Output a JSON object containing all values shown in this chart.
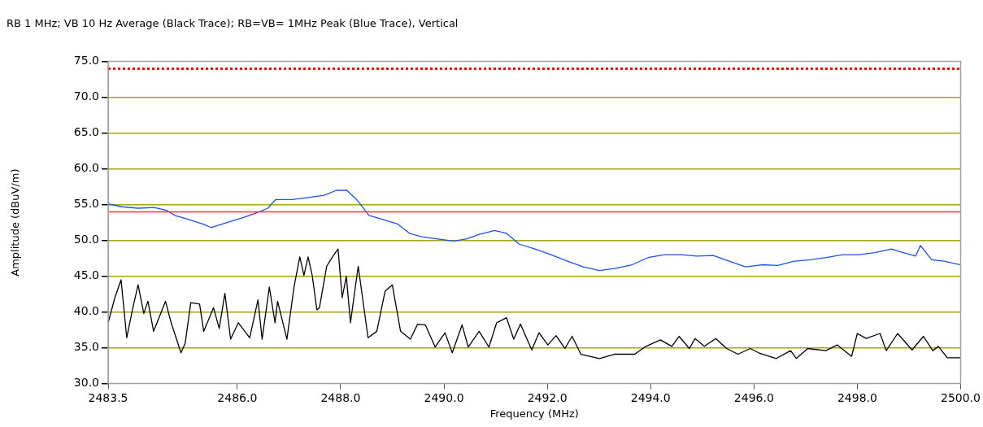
{
  "chart_data": {
    "type": "line",
    "title": "RB 1 MHz; VB 10 Hz Average (Black Trace); RB=VB= 1MHz Peak (Blue Trace), Vertical",
    "xlabel": "Frequency (MHz)",
    "ylabel": "Amplitude (dBuV/m)",
    "xlim": [
      2483.5,
      2500.0
    ],
    "xticks": [
      {
        "value": 2483.5,
        "label": "2483.5"
      },
      {
        "value": 2486,
        "label": "2486.0"
      },
      {
        "value": 2488,
        "label": "2488.0"
      },
      {
        "value": 2490,
        "label": "2490.0"
      },
      {
        "value": 2492,
        "label": "2492.0"
      },
      {
        "value": 2494,
        "label": "2494.0"
      },
      {
        "value": 2496,
        "label": "2496.0"
      },
      {
        "value": 2498,
        "label": "2498.0"
      },
      {
        "value": 2500,
        "label": "2500.0"
      }
    ],
    "ylim": [
      30,
      75
    ],
    "yticks": [
      {
        "value": 30,
        "label": "30.0"
      },
      {
        "value": 35,
        "label": "35.0"
      },
      {
        "value": 40,
        "label": "40.0"
      },
      {
        "value": 45,
        "label": "45.0"
      },
      {
        "value": 50,
        "label": "50.0"
      },
      {
        "value": 55,
        "label": "55.0"
      },
      {
        "value": 60,
        "label": "60.0"
      },
      {
        "value": 65,
        "label": "65.0"
      },
      {
        "value": 70,
        "label": "70.0"
      },
      {
        "value": 75,
        "label": "75.0"
      }
    ],
    "grid": "y",
    "marker": "none",
    "line_style": "solid",
    "ref_lines": [
      {
        "axis": "y",
        "value": 74,
        "color": "#ff0000",
        "line_style": "dotted"
      },
      {
        "axis": "y",
        "value": 54,
        "color": "#ff3030",
        "line_style": "solid"
      }
    ],
    "series": [
      {
        "color": "#1f4fe6",
        "x": [
          2483.5,
          2483.77,
          2484.08,
          2484.39,
          2484.63,
          2484.79,
          2485.02,
          2485.33,
          2485.49,
          2485.8,
          2486.12,
          2486.43,
          2486.59,
          2486.74,
          2487.06,
          2487.37,
          2487.68,
          2487.92,
          2488.12,
          2488.31,
          2488.55,
          2488.78,
          2489.1,
          2489.33,
          2489.57,
          2489.88,
          2490.19,
          2490.43,
          2490.66,
          2490.98,
          2491.21,
          2491.45,
          2491.76,
          2492.07,
          2492.39,
          2492.7,
          2493.01,
          2493.33,
          2493.64,
          2493.95,
          2494.27,
          2494.58,
          2494.89,
          2495.21,
          2495.52,
          2495.84,
          2496.15,
          2496.46,
          2496.78,
          2497.09,
          2497.4,
          2497.72,
          2498.03,
          2498.34,
          2498.66,
          2498.89,
          2499.13,
          2499.22,
          2499.44,
          2499.68,
          2500.0
        ],
        "values": [
          55.1,
          54.7,
          54.5,
          54.6,
          54.2,
          53.5,
          53.0,
          52.3,
          51.8,
          52.5,
          53.2,
          54.0,
          54.5,
          55.7,
          55.7,
          56.0,
          56.3,
          57.0,
          57.0,
          55.7,
          53.5,
          53.0,
          52.3,
          51.0,
          50.5,
          50.2,
          49.9,
          50.2,
          50.8,
          51.4,
          51.0,
          49.5,
          48.8,
          48.0,
          47.1,
          46.3,
          45.8,
          46.1,
          46.6,
          47.6,
          48.0,
          48.0,
          47.8,
          47.9,
          47.1,
          46.3,
          46.6,
          46.5,
          47.1,
          47.3,
          47.6,
          48.0,
          48.0,
          48.3,
          48.8,
          48.3,
          47.8,
          49.3,
          47.3,
          47.1,
          46.6
        ]
      },
      {
        "color": "#000000",
        "x": [
          2483.5,
          2483.63,
          2483.75,
          2483.86,
          2483.97,
          2484.08,
          2484.19,
          2484.27,
          2484.38,
          2484.61,
          2484.72,
          2484.91,
          2484.99,
          2485.1,
          2485.27,
          2485.35,
          2485.54,
          2485.65,
          2485.76,
          2485.87,
          2486.02,
          2486.24,
          2486.4,
          2486.48,
          2486.62,
          2486.73,
          2486.78,
          2486.96,
          2487.1,
          2487.21,
          2487.29,
          2487.37,
          2487.45,
          2487.54,
          2487.59,
          2487.73,
          2487.86,
          2487.95,
          2488.03,
          2488.11,
          2488.19,
          2488.34,
          2488.53,
          2488.7,
          2488.86,
          2489.0,
          2489.16,
          2489.35,
          2489.49,
          2489.64,
          2489.83,
          2490.02,
          2490.16,
          2490.35,
          2490.47,
          2490.68,
          2490.87,
          2491.02,
          2491.21,
          2491.35,
          2491.48,
          2491.7,
          2491.84,
          2492.01,
          2492.17,
          2492.34,
          2492.48,
          2492.65,
          2493.01,
          2493.3,
          2493.69,
          2493.91,
          2494.19,
          2494.41,
          2494.55,
          2494.75,
          2494.86,
          2495.04,
          2495.26,
          2495.47,
          2495.69,
          2495.93,
          2496.09,
          2496.43,
          2496.71,
          2496.82,
          2497.04,
          2497.39,
          2497.61,
          2497.89,
          2498.0,
          2498.17,
          2498.44,
          2498.56,
          2498.78,
          2499.06,
          2499.28,
          2499.46,
          2499.57,
          2499.74,
          2500.0
        ],
        "values": [
          38.5,
          42.0,
          44.5,
          36.4,
          40.3,
          43.8,
          39.8,
          41.5,
          37.3,
          41.5,
          38.5,
          34.3,
          35.6,
          41.3,
          41.1,
          37.3,
          40.6,
          37.7,
          42.6,
          36.2,
          38.5,
          36.4,
          41.7,
          36.2,
          43.5,
          38.5,
          41.5,
          36.2,
          43.6,
          47.7,
          45.1,
          47.7,
          45.1,
          40.3,
          40.6,
          46.4,
          47.9,
          48.8,
          42.0,
          45.0,
          38.5,
          46.4,
          36.4,
          37.3,
          42.9,
          43.8,
          37.3,
          36.2,
          38.3,
          38.2,
          35.1,
          37.1,
          34.3,
          38.2,
          35.1,
          37.3,
          35.1,
          38.5,
          39.2,
          36.2,
          38.3,
          34.7,
          37.1,
          35.4,
          36.7,
          34.9,
          36.6,
          34.1,
          33.5,
          34.1,
          34.1,
          35.2,
          36.1,
          35.2,
          36.6,
          34.9,
          36.3,
          35.2,
          36.3,
          34.9,
          34.1,
          34.9,
          34.3,
          33.5,
          34.6,
          33.5,
          34.9,
          34.6,
          35.4,
          33.8,
          37.0,
          36.3,
          37.0,
          34.6,
          37.0,
          34.7,
          36.6,
          34.6,
          35.2,
          33.6,
          33.6
        ]
      }
    ]
  }
}
